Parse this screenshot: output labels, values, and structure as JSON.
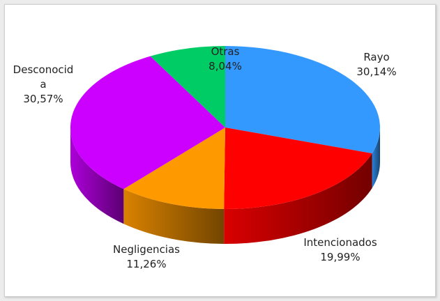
{
  "chart_data": {
    "type": "pie",
    "categories": [
      "Rayo",
      "Intencionados",
      "Negligencias",
      "Desconocida",
      "Otras"
    ],
    "values": [
      30.14,
      19.99,
      11.26,
      30.57,
      8.04
    ],
    "value_labels": [
      "30,14%",
      "19,99%",
      "11,26%",
      "30,57%",
      "8,04%"
    ],
    "colors": [
      "#3399ff",
      "#ff0000",
      "#ff9900",
      "#cc00ff",
      "#00cc66"
    ]
  }
}
